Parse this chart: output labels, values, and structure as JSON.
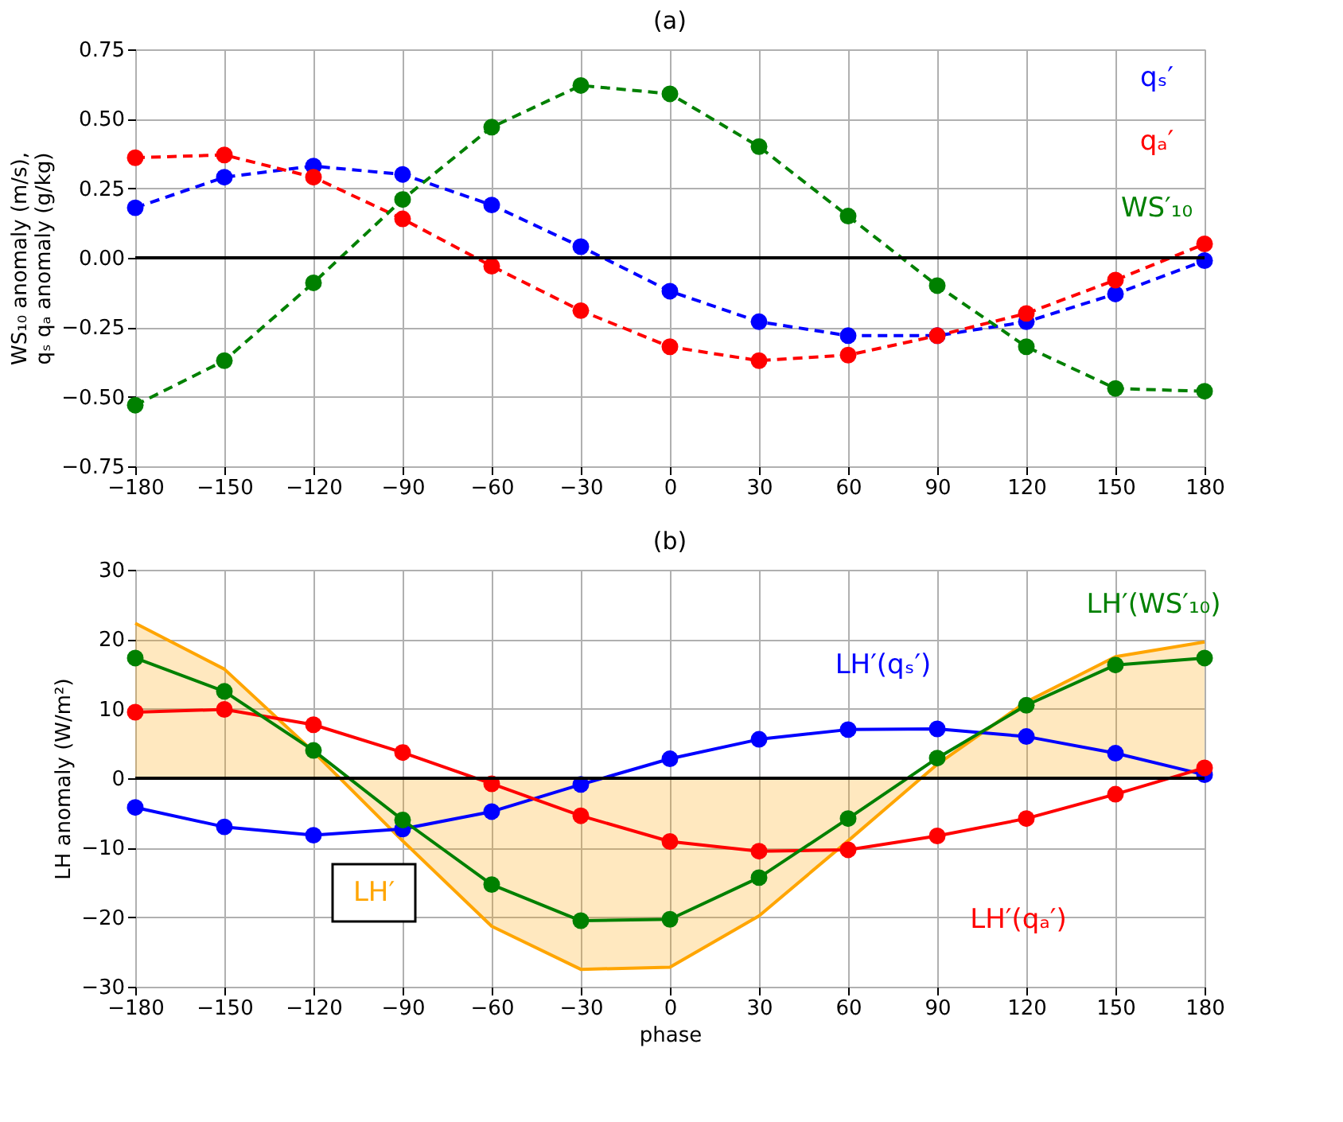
{
  "chart_data": [
    {
      "type": "line",
      "title": "(a)",
      "ylabel": "WS₁₀ anomaly (m/s),\nqₛ qₐ anomaly (g/kg)",
      "x": [
        -180,
        -150,
        -120,
        -90,
        -60,
        -30,
        0,
        30,
        60,
        90,
        120,
        150,
        180
      ],
      "series": [
        {
          "name": "qₛ′",
          "color": "#0000ff",
          "values": [
            0.18,
            0.29,
            0.33,
            0.3,
            0.19,
            0.04,
            -0.12,
            -0.23,
            -0.28,
            -0.28,
            -0.23,
            -0.13,
            -0.01
          ]
        },
        {
          "name": "qₐ′",
          "color": "#ff0000",
          "values": [
            0.36,
            0.37,
            0.29,
            0.14,
            -0.03,
            -0.19,
            -0.32,
            -0.37,
            -0.35,
            -0.28,
            -0.2,
            -0.08,
            0.05
          ]
        },
        {
          "name": "WS′₁₀",
          "color": "#008000",
          "values": [
            -0.53,
            -0.37,
            -0.09,
            0.21,
            0.47,
            0.62,
            0.59,
            0.4,
            0.15,
            -0.1,
            -0.32,
            -0.47,
            -0.48
          ]
        }
      ],
      "xlim": [
        -180,
        180
      ],
      "xticks": [
        {
          "value": -180,
          "label": "−180"
        },
        {
          "value": -150,
          "label": "−150"
        },
        {
          "value": -120,
          "label": "−120"
        },
        {
          "value": -90,
          "label": "−90"
        },
        {
          "value": -60,
          "label": "−60"
        },
        {
          "value": -30,
          "label": "−30"
        },
        0,
        30,
        60,
        90,
        120,
        150,
        180
      ],
      "ylim": [
        -0.75,
        0.75
      ],
      "yticks": [
        {
          "value": -0.75,
          "label": "−0.75"
        },
        {
          "value": -0.5,
          "label": "−0.50"
        },
        {
          "value": -0.25,
          "label": "−0.25"
        },
        {
          "value": 0,
          "label": "0.00"
        },
        {
          "value": 0.25,
          "label": "0.25"
        },
        {
          "value": 0.5,
          "label": "0.50"
        },
        0.75
      ],
      "ref_lines": [
        {
          "axis": "y",
          "value": 0,
          "color": "#000000"
        }
      ],
      "grid": true,
      "marker": "circle",
      "line_style": "dashed"
    },
    {
      "type": "line",
      "title": "(b)",
      "xlabel": "phase",
      "ylabel": "LH anomaly (W/m²)",
      "x": [
        -180,
        -150,
        -120,
        -90,
        -60,
        -30,
        0,
        30,
        60,
        90,
        120,
        150,
        180
      ],
      "series": [
        {
          "name": "LH′",
          "type": "area",
          "color": "#ffa500",
          "marker": "none",
          "values": [
            22.3,
            15.7,
            3.8,
            -9,
            -21.3,
            -27.5,
            -27.2,
            -19.8,
            -9,
            2,
            11,
            17.5,
            19.6
          ]
        },
        {
          "name": "LH′(qₛ′)",
          "color": "#0000ff",
          "values": [
            -4.2,
            -7,
            -8.2,
            -7.3,
            -4.8,
            -0.9,
            2.8,
            5.6,
            7.0,
            7.1,
            6.0,
            3.6,
            0.5
          ]
        },
        {
          "name": "LH′(qₐ′)",
          "color": "#ff0000",
          "values": [
            9.5,
            9.9,
            7.7,
            3.7,
            -0.8,
            -5.4,
            -9.1,
            -10.5,
            -10.3,
            -8.3,
            -5.8,
            -2.3,
            1.5
          ]
        },
        {
          "name": "LH′(WS′₁₀)",
          "color": "#008000",
          "values": [
            17.3,
            12.5,
            4.0,
            -6.0,
            -15.3,
            -20.5,
            -20.3,
            -14.3,
            -5.8,
            2.9,
            10.5,
            16.3,
            17.3
          ]
        }
      ],
      "xlim": [
        -180,
        180
      ],
      "xticks": [
        {
          "value": -180,
          "label": "−180"
        },
        {
          "value": -150,
          "label": "−150"
        },
        {
          "value": -120,
          "label": "−120"
        },
        {
          "value": -90,
          "label": "−90"
        },
        {
          "value": -60,
          "label": "−60"
        },
        {
          "value": -30,
          "label": "−30"
        },
        0,
        30,
        60,
        90,
        120,
        150,
        180
      ],
      "ylim": [
        -30,
        30
      ],
      "yticks": [
        {
          "value": -30,
          "label": "−30"
        },
        {
          "value": -20,
          "label": "−20"
        },
        {
          "value": -10,
          "label": "−10"
        },
        0,
        10,
        20,
        30
      ],
      "ref_lines": [
        {
          "axis": "y",
          "value": 0,
          "color": "#000000"
        }
      ],
      "grid": true,
      "marker": "circle",
      "line_style": "solid"
    }
  ]
}
